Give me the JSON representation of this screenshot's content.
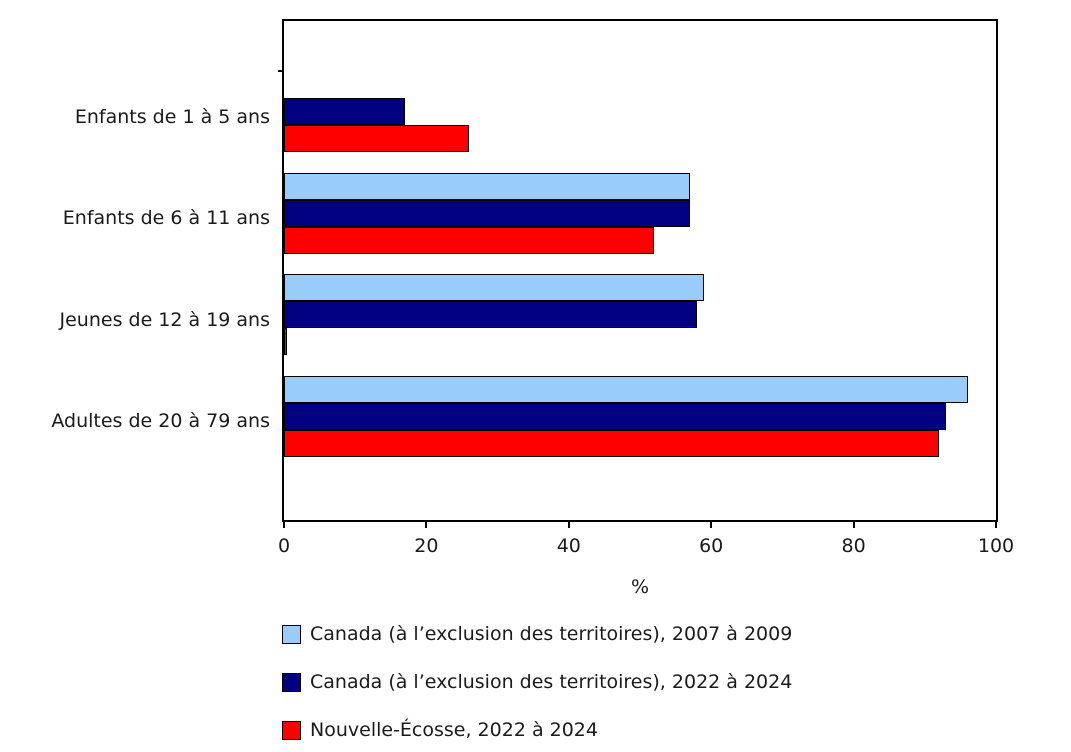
{
  "chart_data": {
    "type": "bar",
    "orientation": "horizontal",
    "categories": [
      "Enfants de 1 à 5 ans",
      "Enfants de 6 à 11 ans",
      "Jeunes de 12 à 19 ans",
      "Adultes de 20 à 79 ans"
    ],
    "series": [
      {
        "name": "Canada (à l’exclusion des territoires), 2007 à 2009",
        "color": "#99CCF8",
        "values": [
          null,
          57,
          59,
          96
        ]
      },
      {
        "name": "Canada (à l’exclusion des territoires), 2022 à 2024",
        "color": "#000080",
        "values": [
          17,
          57,
          58,
          93
        ]
      },
      {
        "name": "Nouvelle-Écosse, 2022 à 2024",
        "color": "#FF0000",
        "values": [
          26,
          52,
          0,
          92
        ]
      }
    ],
    "xlabel": "%",
    "xlim": [
      0,
      100
    ],
    "xticks": [
      0,
      20,
      40,
      60,
      80,
      100
    ],
    "grid": false,
    "legend_position": "bottom-left",
    "bar_border_color": "#000000",
    "axis_color": "#000000",
    "background_color": "#FFFFFF"
  }
}
